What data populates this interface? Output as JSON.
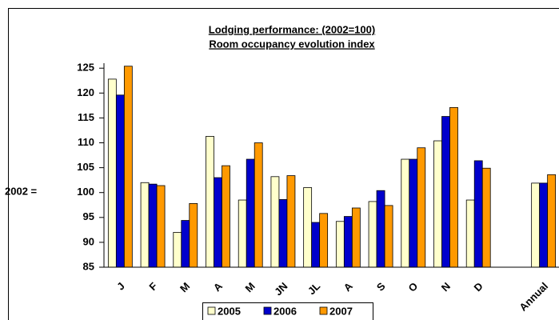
{
  "chart_data": {
    "type": "bar",
    "title": "Lodging performance: (2002=100)",
    "subtitle": "Room occupancy evolution index",
    "y_label": "2002 =",
    "categories": [
      "J",
      "F",
      "M",
      "A",
      "M",
      "JN",
      "JL",
      "A",
      "S",
      "O",
      "N",
      "D",
      null,
      "Annual"
    ],
    "series": [
      {
        "name": "2005",
        "color": "#ffffcc",
        "values": [
          122.8,
          102,
          92,
          111.3,
          98.5,
          103.2,
          101,
          94.2,
          98.2,
          106.7,
          110.4,
          98.5,
          null,
          101.9
        ]
      },
      {
        "name": "2006",
        "color": "#0000cc",
        "values": [
          119.6,
          101.7,
          94.4,
          103,
          106.7,
          98.6,
          94,
          95.2,
          100.4,
          106.7,
          115.3,
          106.4,
          null,
          101.9
        ]
      },
      {
        "name": "2007",
        "color": "#ff9900",
        "values": [
          125.4,
          101.4,
          97.8,
          105.4,
          110,
          103.4,
          95.8,
          96.9,
          97.4,
          109,
          117.1,
          104.9,
          null,
          103.6
        ]
      }
    ],
    "ylim": [
      85,
      126
    ],
    "yticks": [
      85,
      90,
      95,
      100,
      105,
      110,
      115,
      120,
      125
    ]
  }
}
